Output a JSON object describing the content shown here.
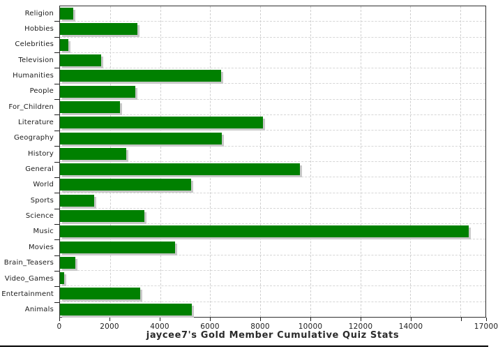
{
  "title": "jaycee7's Gold Member Cumulative Quiz Stats",
  "chart_data": {
    "type": "bar",
    "orientation": "horizontal",
    "title": "jaycee7's Gold Member Cumulative Quiz Stats",
    "xlabel": "",
    "ylabel": "",
    "xlim": [
      0,
      17000
    ],
    "grid": "dashed-both-axes",
    "legend": "none",
    "bar_color": "#008000",
    "bar_shadow_color": "#c9c9c9",
    "grid_color": "#d6d6d6",
    "axis_color": "#2f2f2f",
    "categories": [
      "Religion",
      "Hobbies",
      "Celebrities",
      "Television",
      "Humanities",
      "People",
      "For_Children",
      "Literature",
      "Geography",
      "History",
      "General",
      "World",
      "Sports",
      "Science",
      "Music",
      "Movies",
      "Brain_Teasers",
      "Video_Games",
      "Entertainment",
      "Animals"
    ],
    "values": [
      530,
      3100,
      330,
      1640,
      6450,
      3010,
      2400,
      8100,
      6460,
      2650,
      9600,
      5230,
      1370,
      3370,
      16330,
      4610,
      610,
      170,
      3210,
      5270
    ],
    "x_ticks": [
      0,
      2000,
      4000,
      6000,
      8000,
      10000,
      12000,
      14000,
      16000
    ],
    "x_tick_labels": [
      "0",
      "2000",
      "4000",
      "6000",
      "8000",
      "10000",
      "12000",
      "14000"
    ],
    "x_end_tick": 17000,
    "x_end_label": "17000"
  }
}
